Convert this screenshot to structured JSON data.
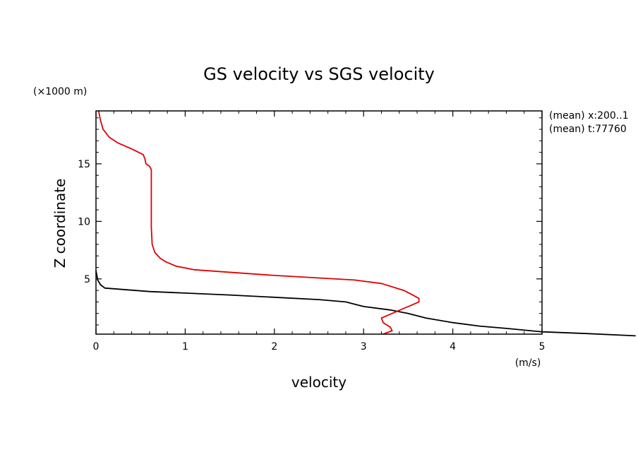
{
  "chart_data": {
    "type": "line",
    "title": "GS velocity vs SGS velocity",
    "xlabel": "velocity",
    "ylabel": "Z coordinate",
    "x_unit": "(m/s)",
    "y_unit": "(×1000 m)",
    "xlim": [
      0,
      5
    ],
    "ylim": [
      0.2,
      19.6
    ],
    "x_ticks": [
      0,
      1,
      2,
      3,
      4,
      5
    ],
    "y_ticks": [
      5,
      10,
      15
    ],
    "grid": false,
    "annotations": [
      "(mean) x:200..1",
      "(mean) t:77760"
    ],
    "colors": {
      "series1": "#000000",
      "series2": "#e00000"
    },
    "series": [
      {
        "color": "#000000",
        "points": [
          [
            0.0,
            5.7
          ],
          [
            0.02,
            4.9
          ],
          [
            0.05,
            4.5
          ],
          [
            0.1,
            4.2
          ],
          [
            0.6,
            3.9
          ],
          [
            1.5,
            3.6
          ],
          [
            2.5,
            3.2
          ],
          [
            2.8,
            3.0
          ],
          [
            3.0,
            2.6
          ],
          [
            3.3,
            2.3
          ],
          [
            3.5,
            2.0
          ],
          [
            3.7,
            1.6
          ],
          [
            4.0,
            1.2
          ],
          [
            4.3,
            0.9
          ],
          [
            4.6,
            0.7
          ],
          [
            5.0,
            0.4
          ],
          [
            5.5,
            0.25
          ],
          [
            6.05,
            0.05
          ]
        ]
      },
      {
        "color": "#e00000",
        "points": [
          [
            0.03,
            19.6
          ],
          [
            0.05,
            18.8
          ],
          [
            0.08,
            18.0
          ],
          [
            0.15,
            17.3
          ],
          [
            0.25,
            16.8
          ],
          [
            0.4,
            16.3
          ],
          [
            0.53,
            15.8
          ],
          [
            0.55,
            15.4
          ],
          [
            0.56,
            15.0
          ],
          [
            0.6,
            14.8
          ],
          [
            0.62,
            14.5
          ],
          [
            0.62,
            13.0
          ],
          [
            0.62,
            11.0
          ],
          [
            0.62,
            9.5
          ],
          [
            0.63,
            8.0
          ],
          [
            0.66,
            7.3
          ],
          [
            0.72,
            6.8
          ],
          [
            0.78,
            6.5
          ],
          [
            0.9,
            6.1
          ],
          [
            1.1,
            5.8
          ],
          [
            2.0,
            5.3
          ],
          [
            2.9,
            4.9
          ],
          [
            3.2,
            4.6
          ],
          [
            3.45,
            4.0
          ],
          [
            3.55,
            3.6
          ],
          [
            3.62,
            3.3
          ],
          [
            3.62,
            3.0
          ],
          [
            3.38,
            2.2
          ],
          [
            3.2,
            1.6
          ],
          [
            3.22,
            1.2
          ],
          [
            3.3,
            0.8
          ],
          [
            3.32,
            0.5
          ],
          [
            3.22,
            0.2
          ]
        ]
      }
    ]
  }
}
